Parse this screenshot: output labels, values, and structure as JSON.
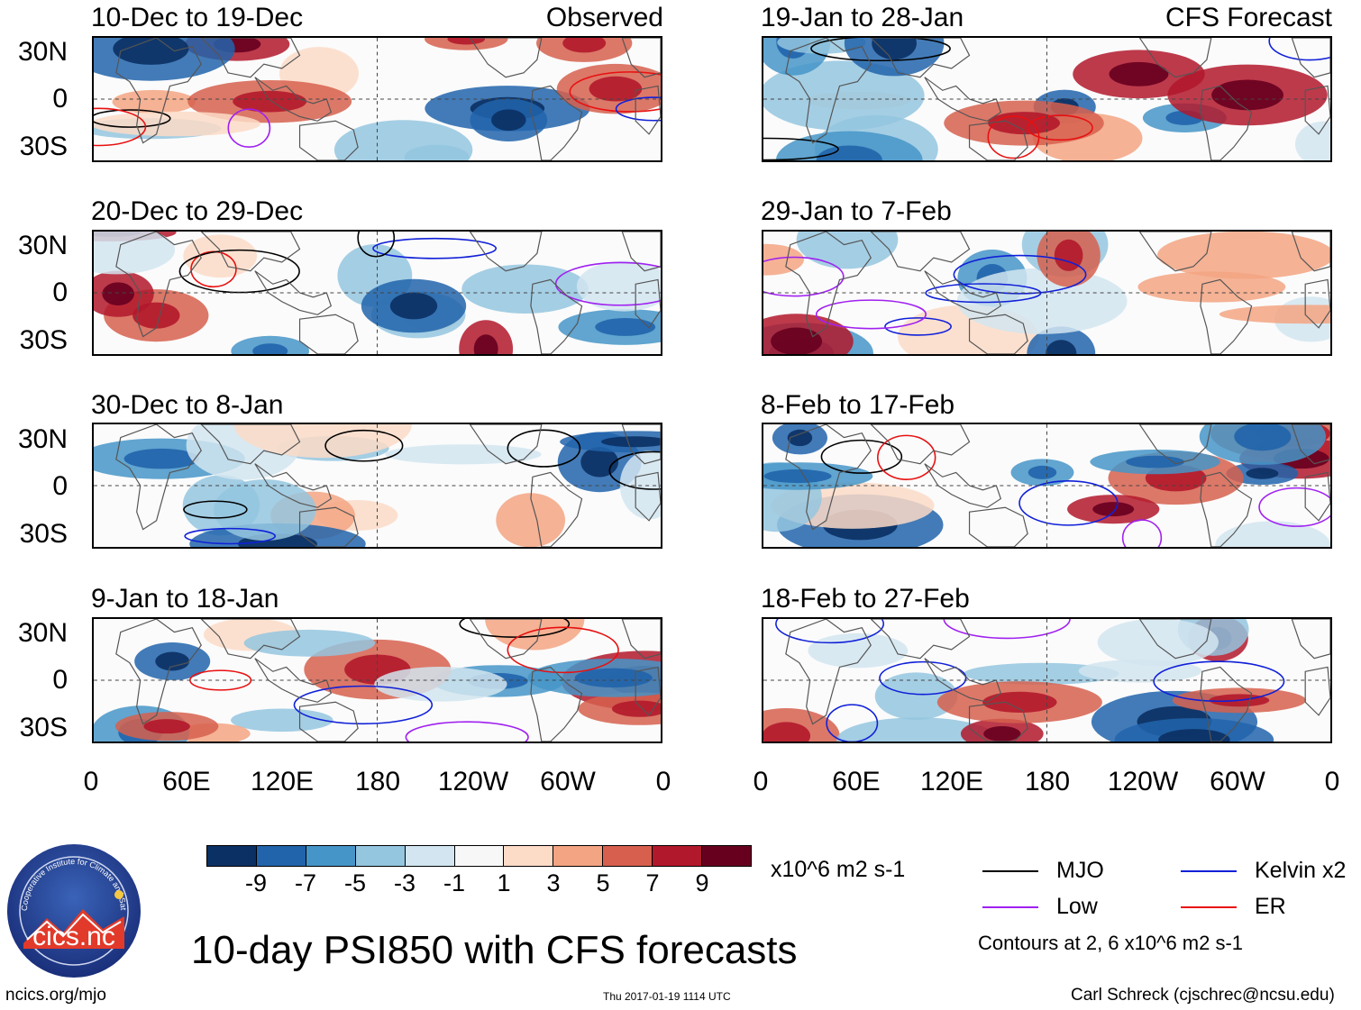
{
  "header": {
    "observed_tag": "Observed",
    "forecast_tag": "CFS Forecast"
  },
  "panels": [
    {
      "title": "10-Dec to 19-Dec",
      "column": "observed"
    },
    {
      "title": "20-Dec to 29-Dec",
      "column": "observed"
    },
    {
      "title": "30-Dec to 8-Jan",
      "column": "observed"
    },
    {
      "title": "9-Jan to 18-Jan",
      "column": "observed"
    },
    {
      "title": "19-Jan to 28-Jan",
      "column": "forecast"
    },
    {
      "title": "29-Jan to 7-Feb",
      "column": "forecast"
    },
    {
      "title": "8-Feb to 17-Feb",
      "column": "forecast"
    },
    {
      "title": "18-Feb to 27-Feb",
      "column": "forecast"
    }
  ],
  "lat_labels": [
    "30N",
    "0",
    "30S"
  ],
  "lon_labels": [
    "0",
    "60E",
    "120E",
    "180",
    "120W",
    "60W",
    "0"
  ],
  "colorbar": {
    "colors": [
      "#0b3063",
      "#2164ab",
      "#4595c8",
      "#94c6df",
      "#d2e5f0",
      "#f7f7f7",
      "#fcdbc7",
      "#f3a482",
      "#d6604d",
      "#b2182b",
      "#67001f"
    ],
    "labels": [
      "-9",
      "-7",
      "-5",
      "-3",
      "-1",
      "1",
      "3",
      "5",
      "7",
      "9"
    ],
    "units": "x10^6 m2 s-1"
  },
  "legend": {
    "items": [
      {
        "label": "MJO",
        "color": "#000000"
      },
      {
        "label": "Kelvin x2",
        "color": "#1020d8"
      },
      {
        "label": "Low",
        "color": "#a020f0"
      },
      {
        "label": "ER",
        "color": "#e81010"
      }
    ],
    "contours_note": "Contours at 2, 6 x10^6 m2 s-1"
  },
  "footer": {
    "main_title": "10-day PSI850 with CFS forecasts",
    "website": "ncics.org/mjo",
    "timestamp": "Thu 2017-01-19 1114 UTC",
    "author": "Carl Schreck (cjschrec@ncsu.edu)",
    "logo_text": "cics.nc",
    "logo_ring_text": "Cooperative Institute for Climate and Satellites"
  }
}
